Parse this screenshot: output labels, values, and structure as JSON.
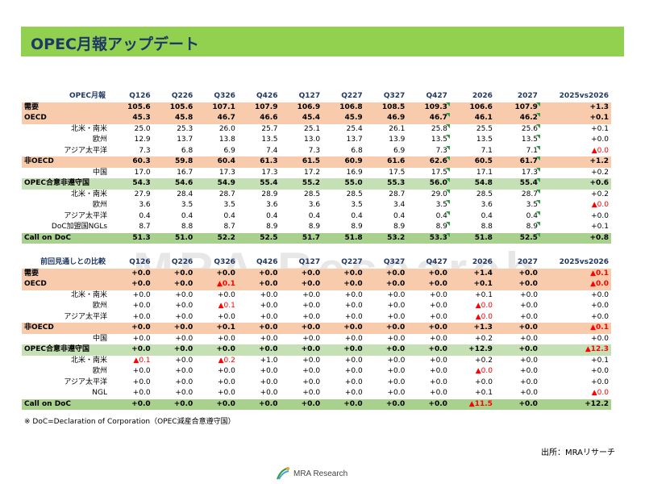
{
  "title": "OPEC月報アップデート",
  "watermark": "MRA Research",
  "columns": [
    "Q126",
    "Q226",
    "Q326",
    "Q426",
    "Q127",
    "Q227",
    "Q327",
    "Q427",
    "2026",
    "2027",
    "2025vs2026"
  ],
  "table1": {
    "header_label": "OPEC月報",
    "rows": [
      {
        "label": "需要",
        "style": "orange",
        "values": [
          "105.6",
          "105.6",
          "107.1",
          "107.9",
          "106.9",
          "106.8",
          "108.5",
          "109.3",
          "106.6",
          "107.9",
          "+1.3"
        ]
      },
      {
        "label": "OECD",
        "style": "orange",
        "values": [
          "45.3",
          "45.8",
          "46.7",
          "46.6",
          "45.4",
          "45.9",
          "46.9",
          "46.7",
          "46.1",
          "46.2",
          "+0.1"
        ]
      },
      {
        "label": "北米・南米",
        "style": "sub",
        "values": [
          "25.0",
          "25.3",
          "26.0",
          "25.7",
          "25.1",
          "25.4",
          "26.1",
          "25.8",
          "25.5",
          "25.6",
          "+0.1"
        ]
      },
      {
        "label": "欧州",
        "style": "sub",
        "values": [
          "12.9",
          "13.7",
          "13.8",
          "13.5",
          "13.0",
          "13.7",
          "13.9",
          "13.5",
          "13.5",
          "13.5",
          "+0.0"
        ]
      },
      {
        "label": "アジア太平洋",
        "style": "sub",
        "values": [
          "7.3",
          "6.8",
          "6.9",
          "7.4",
          "7.3",
          "6.8",
          "6.9",
          "7.3",
          "7.1",
          "7.1",
          "▲0.0"
        ]
      },
      {
        "label": "非OECD",
        "style": "orange",
        "values": [
          "60.3",
          "59.8",
          "60.4",
          "61.3",
          "61.5",
          "60.9",
          "61.6",
          "62.6",
          "60.5",
          "61.7",
          "+1.2"
        ]
      },
      {
        "label": "中国",
        "style": "sub",
        "values": [
          "17.0",
          "16.7",
          "17.3",
          "17.3",
          "17.2",
          "16.9",
          "17.5",
          "17.5",
          "17.1",
          "17.3",
          "+0.2"
        ]
      },
      {
        "label": "OPEC合意非遵守国",
        "style": "green",
        "values": [
          "54.3",
          "54.6",
          "54.9",
          "55.4",
          "55.2",
          "55.0",
          "55.3",
          "56.0",
          "54.8",
          "55.4",
          "+0.6"
        ]
      },
      {
        "label": "北米・南米",
        "style": "sub",
        "values": [
          "27.9",
          "28.4",
          "28.7",
          "28.9",
          "28.5",
          "28.5",
          "28.7",
          "29.0",
          "28.5",
          "28.7",
          "+0.2"
        ]
      },
      {
        "label": "欧州",
        "style": "sub",
        "values": [
          "3.6",
          "3.5",
          "3.5",
          "3.6",
          "3.6",
          "3.5",
          "3.4",
          "3.5",
          "3.6",
          "3.5",
          "▲0.0"
        ]
      },
      {
        "label": "アジア太平洋",
        "style": "sub",
        "values": [
          "0.4",
          "0.4",
          "0.4",
          "0.4",
          "0.4",
          "0.4",
          "0.4",
          "0.4",
          "0.4",
          "0.4",
          "+0.0"
        ]
      },
      {
        "label": "DoC加盟国NGLs",
        "style": "sub",
        "values": [
          "8.7",
          "8.8",
          "8.7",
          "8.9",
          "8.9",
          "8.9",
          "8.9",
          "8.9",
          "8.8",
          "8.9",
          "+0.1"
        ]
      },
      {
        "label": "Call on DoC",
        "style": "callg",
        "values": [
          "51.3",
          "51.0",
          "52.2",
          "52.5",
          "51.7",
          "51.8",
          "53.2",
          "53.3",
          "51.8",
          "52.5",
          "+0.8"
        ]
      }
    ]
  },
  "table2": {
    "header_label": "前回見通しとの比較",
    "rows": [
      {
        "label": "需要",
        "style": "orange",
        "values": [
          "+0.0",
          "+0.0",
          "+0.0",
          "+0.0",
          "+0.0",
          "+0.0",
          "+0.0",
          "+0.0",
          "+1.4",
          "+0.0",
          "▲0.1"
        ]
      },
      {
        "label": "OECD",
        "style": "orange",
        "values": [
          "+0.0",
          "+0.0",
          "▲0.1",
          "+0.0",
          "+0.0",
          "+0.0",
          "+0.0",
          "+0.0",
          "+0.1",
          "+0.0",
          "▲0.0"
        ]
      },
      {
        "label": "北米・南米",
        "style": "sub",
        "values": [
          "+0.0",
          "+0.0",
          "+0.0",
          "+0.0",
          "+0.0",
          "+0.0",
          "+0.0",
          "+0.0",
          "+0.1",
          "+0.0",
          "+0.0"
        ]
      },
      {
        "label": "欧州",
        "style": "sub",
        "values": [
          "+0.0",
          "+0.0",
          "▲0.1",
          "+0.0",
          "+0.0",
          "+0.0",
          "+0.0",
          "+0.0",
          "▲0.0",
          "+0.0",
          "+0.0"
        ]
      },
      {
        "label": "アジア太平洋",
        "style": "sub",
        "values": [
          "+0.0",
          "+0.0",
          "+0.0",
          "+0.0",
          "+0.0",
          "+0.0",
          "+0.0",
          "+0.0",
          "▲0.0",
          "+0.0",
          "+0.0"
        ]
      },
      {
        "label": "非OECD",
        "style": "orange",
        "values": [
          "+0.0",
          "+0.0",
          "+0.1",
          "+0.0",
          "+0.0",
          "+0.0",
          "+0.0",
          "+0.0",
          "+1.3",
          "+0.0",
          "▲0.1"
        ]
      },
      {
        "label": "中国",
        "style": "sub",
        "values": [
          "+0.0",
          "+0.0",
          "+0.0",
          "+0.0",
          "+0.0",
          "+0.0",
          "+0.0",
          "+0.0",
          "+0.2",
          "+0.0",
          "+0.0"
        ]
      },
      {
        "label": "OPEC合意非遵守国",
        "style": "green",
        "values": [
          "+0.0",
          "+0.0",
          "+0.0",
          "+0.0",
          "+0.0",
          "+0.0",
          "+0.0",
          "+0.0",
          "+12.9",
          "+0.0",
          "▲12.3"
        ]
      },
      {
        "label": "北米・南米",
        "style": "sub",
        "values": [
          "▲0.1",
          "+0.0",
          "▲0.2",
          "+1.0",
          "+0.0",
          "+0.0",
          "+0.0",
          "+0.0",
          "+0.2",
          "+0.0",
          "+0.1"
        ]
      },
      {
        "label": "欧州",
        "style": "sub",
        "values": [
          "+0.0",
          "+0.0",
          "+0.0",
          "+0.0",
          "+0.0",
          "+0.0",
          "+0.0",
          "+0.0",
          "▲0.0",
          "+0.0",
          "+0.0"
        ]
      },
      {
        "label": "アジア太平洋",
        "style": "sub",
        "values": [
          "+0.0",
          "+0.0",
          "+0.0",
          "+0.0",
          "+0.0",
          "+0.0",
          "+0.0",
          "+0.0",
          "+0.0",
          "+0.0",
          "+0.0"
        ]
      },
      {
        "label": "NGL",
        "style": "sub",
        "values": [
          "+0.0",
          "+0.0",
          "+0.0",
          "+0.0",
          "+0.0",
          "+0.0",
          "+0.0",
          "+0.0",
          "+0.1",
          "+0.0",
          "▲0.0"
        ]
      },
      {
        "label": "Call on DoC",
        "style": "callg",
        "values": [
          "+0.0",
          "+0.0",
          "+0.0",
          "+0.0",
          "+0.0",
          "+0.0",
          "+0.0",
          "+0.0",
          "▲11.5",
          "+0.0",
          "+12.2"
        ]
      }
    ]
  },
  "footnote": "※ DoC=Declaration of Corporation（OPEC減産合意遵守国）",
  "source": "出所：MRAリサーチ",
  "logo_text": "MRA Research",
  "colors": {
    "title_bar": "#92d050",
    "orange_row": "#f8cbad",
    "green_row": "#c5e0b4",
    "call_row": "#a9d18e",
    "negative": "#ff0000",
    "title_text": "#1f3864",
    "flag": "#2e9e3e"
  }
}
